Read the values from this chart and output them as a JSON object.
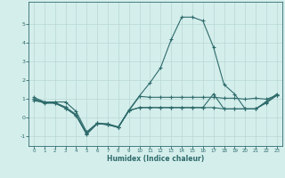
{
  "xlabel": "Humidex (Indice chaleur)",
  "x": [
    0,
    1,
    2,
    3,
    4,
    5,
    6,
    7,
    8,
    9,
    10,
    11,
    12,
    13,
    14,
    15,
    16,
    17,
    18,
    19,
    20,
    21,
    22,
    23
  ],
  "line1": [
    1.1,
    0.85,
    0.85,
    0.85,
    0.35,
    -0.75,
    -0.28,
    -0.38,
    -0.5,
    0.38,
    1.15,
    1.1,
    1.1,
    1.1,
    1.1,
    1.1,
    1.1,
    1.1,
    1.05,
    1.05,
    1.0,
    1.05,
    1.0,
    1.2
  ],
  "line2": [
    1.0,
    0.85,
    0.82,
    0.58,
    0.18,
    -0.82,
    -0.28,
    -0.32,
    -0.48,
    0.42,
    1.18,
    1.88,
    2.68,
    4.18,
    5.38,
    5.38,
    5.18,
    3.78,
    1.78,
    1.28,
    0.48,
    0.48,
    0.88,
    1.28
  ],
  "line3": [
    1.0,
    0.78,
    0.78,
    0.52,
    0.12,
    -0.88,
    -0.32,
    -0.35,
    -0.52,
    0.38,
    0.55,
    0.55,
    0.55,
    0.55,
    0.55,
    0.55,
    0.55,
    1.28,
    0.48,
    0.48,
    0.48,
    0.48,
    0.82,
    1.22
  ],
  "line4": [
    0.92,
    0.82,
    0.8,
    0.52,
    0.15,
    -0.85,
    -0.3,
    -0.33,
    -0.5,
    0.4,
    0.55,
    0.55,
    0.55,
    0.55,
    0.55,
    0.55,
    0.55,
    0.55,
    0.48,
    0.48,
    0.48,
    0.48,
    0.8,
    1.2
  ],
  "line_color": "#2e6b6b",
  "bg_color": "#d4eeec",
  "grid_color": "#b8d8d4",
  "ylim": [
    -1.5,
    6.2
  ],
  "xlim": [
    -0.5,
    23.5
  ],
  "yticks": [
    -1,
    0,
    1,
    2,
    3,
    4,
    5
  ],
  "xticks": [
    0,
    1,
    2,
    3,
    4,
    5,
    6,
    7,
    8,
    9,
    10,
    11,
    12,
    13,
    14,
    15,
    16,
    17,
    18,
    19,
    20,
    21,
    22,
    23
  ]
}
